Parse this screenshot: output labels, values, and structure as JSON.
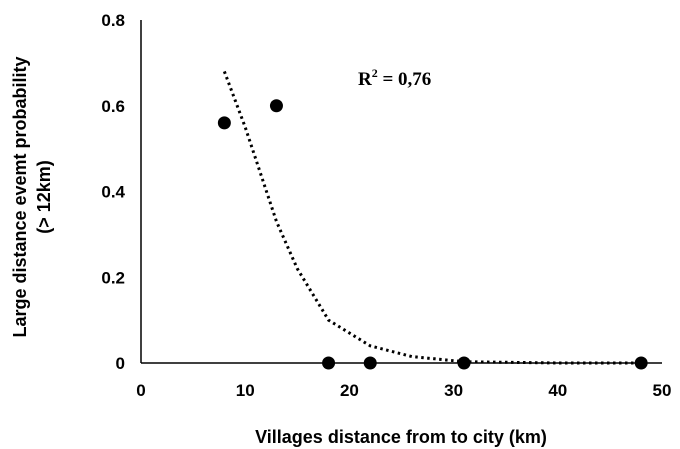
{
  "chart_data": {
    "type": "scatter",
    "title": "",
    "xlabel": "Villages distance from to city (km)",
    "ylabel_lines": [
      "Large distance evemt probability",
      "(> 12km)"
    ],
    "xlim": [
      0,
      50
    ],
    "ylim": [
      0,
      0.8
    ],
    "x_ticks": [
      "0",
      "10",
      "20",
      "30",
      "40",
      "50"
    ],
    "y_ticks": [
      "0",
      "0.2",
      "0.4",
      "0.6",
      "0.8"
    ],
    "grid": false,
    "legend": "none",
    "annotation": {
      "text_base": "R",
      "text_sup": "2",
      "text_rest": " = 0,76"
    },
    "series": [
      {
        "style": "markers",
        "x": [
          8,
          13,
          18,
          22,
          31,
          48
        ],
        "y": [
          0.56,
          0.6,
          0,
          0,
          0,
          0
        ]
      },
      {
        "style": "dotted-trendline",
        "x": [
          8,
          10,
          13,
          15,
          18,
          22,
          26,
          31,
          40,
          48
        ],
        "y": [
          0.68,
          0.55,
          0.33,
          0.22,
          0.1,
          0.04,
          0.015,
          0.003,
          0.0,
          0.0
        ]
      }
    ],
    "colors": {
      "marker": "#000000",
      "trendline": "#000000",
      "axis": "#000000"
    }
  }
}
